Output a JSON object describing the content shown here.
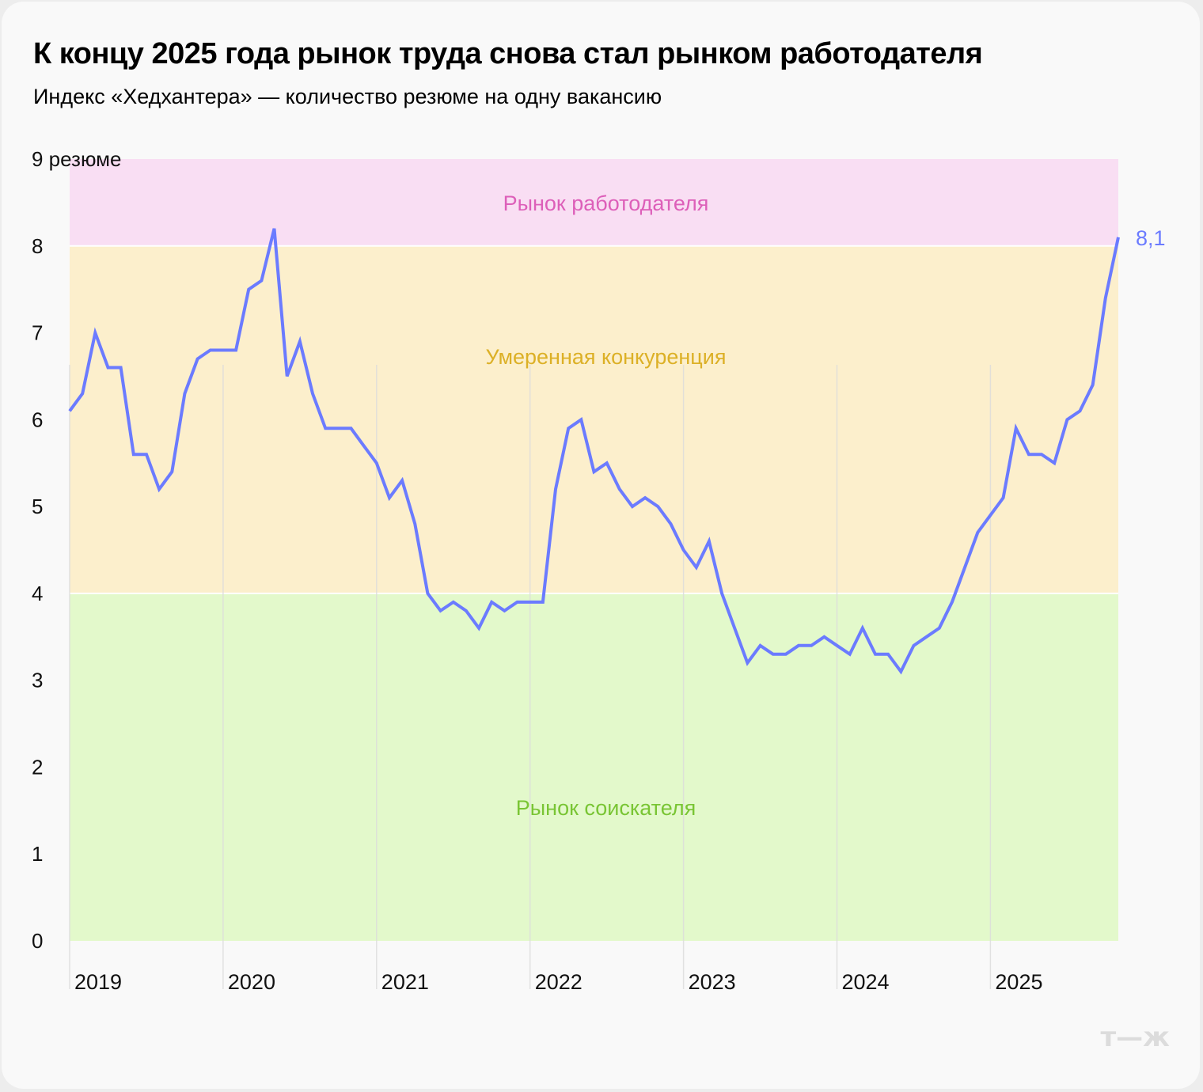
{
  "header": {
    "title": "К концу 2025 года рынок труда снова стал рынком работодателя",
    "subtitle": "Индекс «Хедхантера» — количество резюме на одну вакансию"
  },
  "logo": {
    "text": "т—ж",
    "icon": "tj-logo-icon",
    "color": "#dcdcdc"
  },
  "colors": {
    "line": "#6b7bff",
    "zone_employer": "#f9def3",
    "zone_moderate": "#fcefcc",
    "zone_candidate": "#e3f9cb",
    "label_employer": "#dd5fb9",
    "label_moderate": "#dcb026",
    "label_candidate": "#79c534",
    "gridline": "#dcdcdc"
  },
  "chart_data": {
    "type": "line",
    "title": "К концу 2025 года рынок труда снова стал рынком работодателя",
    "subtitle": "Индекс «Хедхантера» — количество резюме на одну вакансию",
    "xlabel": "",
    "ylabel": "резюме",
    "ylim": [
      0,
      9
    ],
    "yticks": [
      "0",
      "1",
      "2",
      "3",
      "4",
      "5",
      "6",
      "7",
      "8",
      "9 резюме"
    ],
    "xticks": [
      "2019",
      "2020",
      "2021",
      "2022",
      "2023",
      "2024",
      "2025"
    ],
    "grid": "vertical lines at year starts",
    "zones": [
      {
        "label": "Рынок работодателя",
        "from": 8,
        "to": 9
      },
      {
        "label": "Умеренная конкуренция",
        "from": 4,
        "to": 8
      },
      {
        "label": "Рынок соискателя",
        "from": 0,
        "to": 4
      }
    ],
    "annotations": [
      {
        "text": "8,1",
        "x": "2025-11",
        "y": 8.1
      }
    ],
    "x_start": "2019-01",
    "x_end": "2025-11",
    "frequency": "monthly",
    "series": [
      {
        "name": "Индекс «Хедхантера»",
        "values": [
          6.1,
          6.3,
          7.0,
          6.6,
          6.6,
          5.6,
          5.6,
          5.2,
          5.4,
          6.3,
          6.7,
          6.8,
          6.8,
          6.8,
          7.5,
          7.6,
          8.2,
          6.5,
          6.9,
          6.3,
          5.9,
          5.9,
          5.9,
          5.7,
          5.5,
          5.1,
          5.3,
          4.8,
          4.0,
          3.8,
          3.9,
          3.8,
          3.6,
          3.9,
          3.8,
          3.9,
          3.9,
          3.9,
          5.2,
          5.9,
          6.0,
          5.4,
          5.5,
          5.2,
          5.0,
          5.1,
          5.0,
          4.8,
          4.5,
          4.3,
          4.6,
          4.0,
          3.6,
          3.2,
          3.4,
          3.3,
          3.3,
          3.4,
          3.4,
          3.5,
          3.4,
          3.3,
          3.6,
          3.3,
          3.3,
          3.1,
          3.4,
          3.5,
          3.6,
          3.9,
          4.3,
          4.7,
          4.9,
          5.1,
          5.9,
          5.6,
          5.6,
          5.5,
          6.0,
          6.1,
          6.4,
          7.4,
          8.1
        ]
      }
    ]
  }
}
